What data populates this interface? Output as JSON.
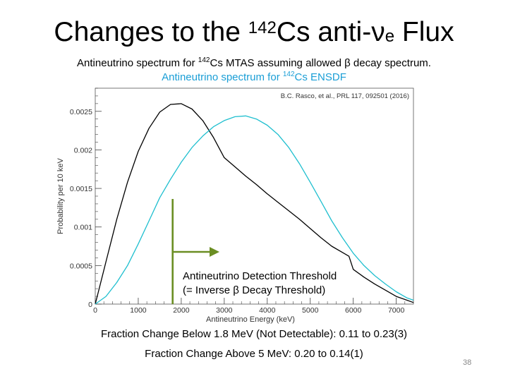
{
  "slide": {
    "title_pre": "Changes to the ",
    "title_sup": "142",
    "title_mid": "Cs anti-ν",
    "title_sub": "e",
    "title_post": " Flux",
    "subtitle1_pre": "Antineutrino spectrum for ",
    "subtitle1_sup": "142",
    "subtitle1_post": "Cs MTAS assuming allowed β decay spectrum.",
    "subtitle2_pre": "Antineutrino spectrum for ",
    "subtitle2_sup": "142",
    "subtitle2_post": "Cs ENSDF",
    "bottom_line1": "Fraction Change Below 1.8 MeV (Not Detectable): 0.11 to 0.23(3)",
    "bottom_line2": "Fraction Change Above 5 MeV: 0.20 to 0.14(1)",
    "slide_number": "38"
  },
  "colors": {
    "mtas": "#000000",
    "ensdf": "#1fbfcf",
    "threshold": "#6b8e23",
    "subtitle2": "#1a9ed6"
  },
  "chart_data": {
    "type": "line",
    "xlabel": "Antineutrino Energy (keV)",
    "ylabel": "Probability per 10 keV",
    "xlim": [
      0,
      7400
    ],
    "ylim": [
      0,
      0.0028
    ],
    "x_ticks": [
      0,
      1000,
      2000,
      3000,
      4000,
      5000,
      6000,
      7000
    ],
    "x_tick_labels": [
      "0",
      "1000",
      "2000",
      "3000",
      "4000",
      "5000",
      "6000",
      "7000"
    ],
    "y_ticks": [
      0,
      0.0005,
      0.001,
      0.0015,
      0.002,
      0.0025
    ],
    "y_tick_labels": [
      "0",
      "0.0005",
      "0.001",
      "0.0015",
      "0.002",
      "0.0025"
    ],
    "reference": "B.C. Rasco, et al., PRL 117, 092501 (2016)",
    "series": [
      {
        "key": "mtas",
        "points": [
          [
            0,
            0
          ],
          [
            100,
            0.00022
          ],
          [
            250,
            0.00055
          ],
          [
            500,
            0.0011
          ],
          [
            750,
            0.00158
          ],
          [
            1000,
            0.00198
          ],
          [
            1250,
            0.00228
          ],
          [
            1500,
            0.00249
          ],
          [
            1750,
            0.00259
          ],
          [
            2000,
            0.0026
          ],
          [
            2250,
            0.00253
          ],
          [
            2500,
            0.00238
          ],
          [
            2750,
            0.00216
          ],
          [
            3000,
            0.0019
          ],
          [
            3250,
            0.00178
          ],
          [
            3500,
            0.00166
          ],
          [
            3750,
            0.00155
          ],
          [
            4000,
            0.00143
          ],
          [
            4250,
            0.00132
          ],
          [
            4500,
            0.00121
          ],
          [
            4750,
            0.0011
          ],
          [
            5000,
            0.00098
          ],
          [
            5250,
            0.00086
          ],
          [
            5500,
            0.00075
          ],
          [
            5750,
            0.00067
          ],
          [
            5900,
            0.00062
          ],
          [
            6000,
            0.00045
          ],
          [
            6250,
            0.00035
          ],
          [
            6500,
            0.00026
          ],
          [
            6750,
            0.00018
          ],
          [
            7000,
            0.0001
          ],
          [
            7250,
            5e-05
          ],
          [
            7400,
            2e-05
          ]
        ]
      },
      {
        "key": "ensdf",
        "points": [
          [
            0,
            0
          ],
          [
            250,
            0.0001
          ],
          [
            500,
            0.00028
          ],
          [
            750,
            0.0005
          ],
          [
            1000,
            0.00078
          ],
          [
            1250,
            0.00108
          ],
          [
            1500,
            0.00138
          ],
          [
            1750,
            0.00162
          ],
          [
            2000,
            0.00184
          ],
          [
            2250,
            0.00203
          ],
          [
            2500,
            0.00218
          ],
          [
            2750,
            0.0023
          ],
          [
            3000,
            0.00238
          ],
          [
            3250,
            0.00243
          ],
          [
            3500,
            0.00244
          ],
          [
            3750,
            0.0024
          ],
          [
            4000,
            0.00232
          ],
          [
            4250,
            0.0022
          ],
          [
            4500,
            0.00203
          ],
          [
            4750,
            0.00182
          ],
          [
            5000,
            0.00158
          ],
          [
            5250,
            0.00133
          ],
          [
            5500,
            0.00108
          ],
          [
            5750,
            0.00086
          ],
          [
            6000,
            0.00066
          ],
          [
            6250,
            0.0005
          ],
          [
            6500,
            0.00037
          ],
          [
            6750,
            0.00026
          ],
          [
            7000,
            0.00016
          ],
          [
            7250,
            8e-05
          ],
          [
            7400,
            5e-05
          ]
        ]
      }
    ],
    "threshold": {
      "energy": 1800,
      "label_line1": "Antineutrino Detection Threshold",
      "label_line2": "(= Inverse β Decay Threshold)"
    }
  }
}
